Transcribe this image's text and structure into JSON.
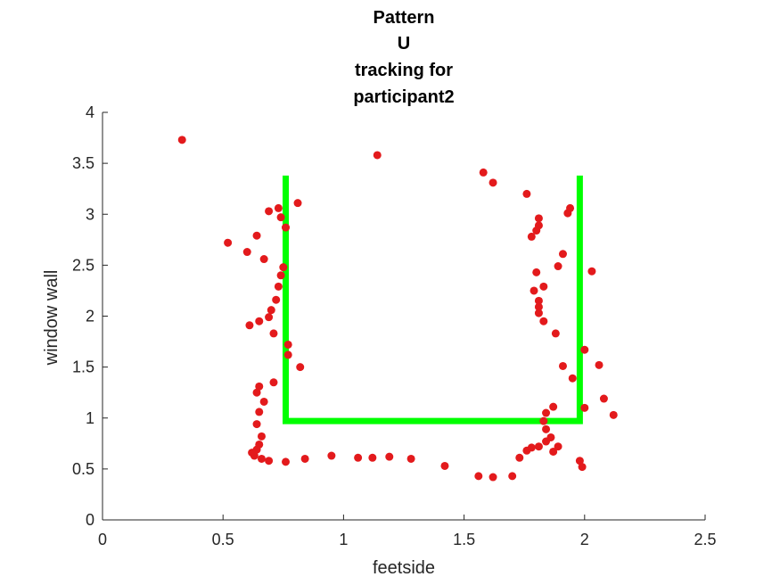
{
  "chart_data": {
    "type": "scatter",
    "title_lines": [
      "Pattern",
      "U",
      "tracking for",
      "participant2"
    ],
    "xlabel": "feetside",
    "ylabel": "window wall",
    "xlim": [
      0,
      2.5
    ],
    "ylim": [
      0,
      4
    ],
    "xticks": [
      "0",
      "0.5",
      "1",
      "1.5",
      "2",
      "2.5"
    ],
    "yticks": [
      "0",
      "0.5",
      "1",
      "1.5",
      "2",
      "2.5",
      "3",
      "3.5",
      "4"
    ],
    "grid": false,
    "colors": {
      "points": "#e31a1c",
      "pattern": "#00ff00",
      "axis": "#262626"
    },
    "pattern": {
      "x": [
        0.76,
        0.76,
        1.98,
        1.98
      ],
      "y": [
        3.38,
        0.97,
        0.97,
        3.38
      ]
    },
    "points": [
      [
        0.33,
        3.73
      ],
      [
        1.14,
        3.58
      ],
      [
        1.58,
        3.41
      ],
      [
        1.62,
        3.31
      ],
      [
        0.81,
        3.11
      ],
      [
        0.73,
        3.06
      ],
      [
        0.69,
        3.03
      ],
      [
        0.74,
        2.97
      ],
      [
        0.76,
        2.87
      ],
      [
        0.52,
        2.72
      ],
      [
        0.6,
        2.63
      ],
      [
        0.64,
        2.79
      ],
      [
        0.67,
        2.56
      ],
      [
        0.75,
        2.48
      ],
      [
        0.74,
        2.4
      ],
      [
        0.73,
        2.29
      ],
      [
        0.72,
        2.16
      ],
      [
        0.7,
        2.06
      ],
      [
        0.69,
        1.99
      ],
      [
        0.65,
        1.95
      ],
      [
        0.61,
        1.91
      ],
      [
        0.71,
        1.83
      ],
      [
        0.77,
        1.72
      ],
      [
        0.77,
        1.62
      ],
      [
        0.82,
        1.5
      ],
      [
        0.71,
        1.35
      ],
      [
        0.65,
        1.31
      ],
      [
        0.64,
        1.25
      ],
      [
        0.67,
        1.16
      ],
      [
        0.65,
        1.06
      ],
      [
        0.64,
        0.94
      ],
      [
        0.66,
        0.82
      ],
      [
        0.65,
        0.74
      ],
      [
        0.64,
        0.69
      ],
      [
        0.62,
        0.66
      ],
      [
        0.63,
        0.63
      ],
      [
        0.66,
        0.6
      ],
      [
        0.69,
        0.58
      ],
      [
        0.76,
        0.57
      ],
      [
        0.84,
        0.6
      ],
      [
        0.95,
        0.63
      ],
      [
        1.06,
        0.61
      ],
      [
        1.12,
        0.61
      ],
      [
        1.19,
        0.62
      ],
      [
        1.28,
        0.6
      ],
      [
        1.42,
        0.53
      ],
      [
        1.56,
        0.43
      ],
      [
        1.62,
        0.42
      ],
      [
        1.7,
        0.43
      ],
      [
        1.73,
        0.61
      ],
      [
        1.76,
        0.68
      ],
      [
        1.78,
        0.71
      ],
      [
        1.81,
        0.72
      ],
      [
        1.84,
        0.77
      ],
      [
        1.86,
        0.81
      ],
      [
        1.87,
        0.67
      ],
      [
        1.89,
        0.72
      ],
      [
        1.84,
        0.89
      ],
      [
        1.83,
        0.97
      ],
      [
        1.84,
        1.05
      ],
      [
        1.87,
        1.11
      ],
      [
        1.98,
        0.58
      ],
      [
        1.99,
        0.52
      ],
      [
        2.0,
        1.1
      ],
      [
        2.08,
        1.19
      ],
      [
        2.12,
        1.03
      ],
      [
        1.95,
        1.39
      ],
      [
        2.06,
        1.52
      ],
      [
        1.91,
        1.51
      ],
      [
        2.0,
        1.67
      ],
      [
        1.88,
        1.83
      ],
      [
        1.83,
        1.95
      ],
      [
        1.81,
        2.03
      ],
      [
        1.81,
        2.09
      ],
      [
        1.81,
        2.15
      ],
      [
        1.79,
        2.25
      ],
      [
        1.83,
        2.29
      ],
      [
        1.8,
        2.43
      ],
      [
        2.03,
        2.44
      ],
      [
        1.89,
        2.49
      ],
      [
        1.91,
        2.61
      ],
      [
        1.78,
        2.78
      ],
      [
        1.8,
        2.84
      ],
      [
        1.81,
        2.89
      ],
      [
        1.81,
        2.96
      ],
      [
        1.93,
        3.01
      ],
      [
        1.94,
        3.06
      ],
      [
        1.76,
        3.2
      ]
    ]
  }
}
